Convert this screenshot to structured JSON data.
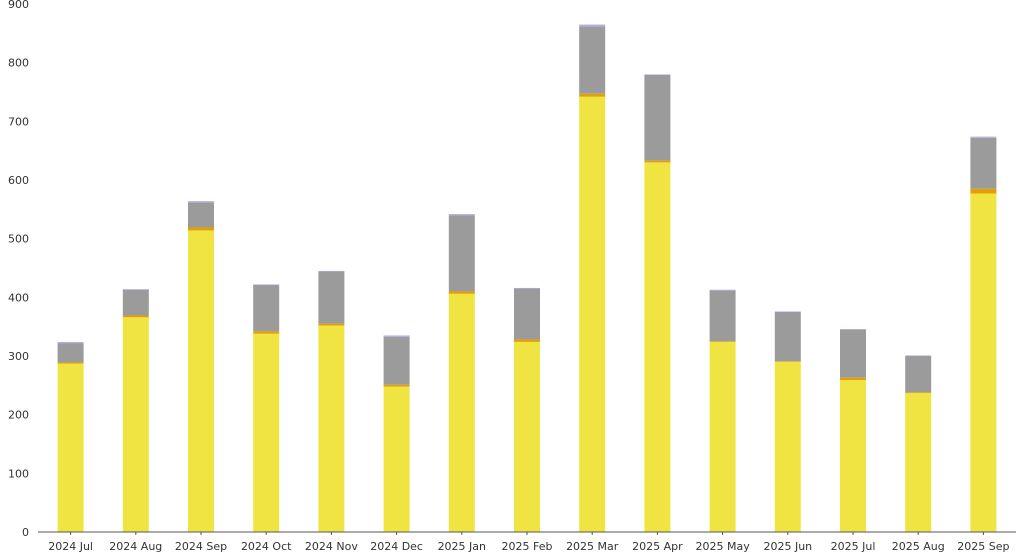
{
  "chart_data": {
    "type": "bar",
    "stacked": true,
    "categories": [
      "2024 Jul",
      "2024 Aug",
      "2024 Sep",
      "2024 Oct",
      "2024 Nov",
      "2024 Dec",
      "2025 Jan",
      "2025 Feb",
      "2025 Mar",
      "2025 Apr",
      "2025 May",
      "2025 Jun",
      "2025 Jul",
      "2025 Aug",
      "2025 Sep"
    ],
    "series": [
      {
        "color": "#f0e442",
        "values": [
          287,
          366,
          514,
          338,
          352,
          248,
          406,
          324,
          742,
          630,
          324,
          290,
          259,
          237,
          577
        ]
      },
      {
        "color": "#e69f00",
        "values": [
          2,
          3,
          5,
          4,
          3,
          3,
          4,
          4,
          5,
          3,
          1,
          1,
          4,
          1,
          8
        ]
      },
      {
        "color": "#9b9b9b",
        "values": [
          33,
          44,
          43,
          79,
          89,
          82,
          130,
          87,
          115,
          146,
          87,
          84,
          82,
          62,
          87
        ]
      },
      {
        "color": "#b0b0e8",
        "values": [
          2,
          1,
          2,
          1,
          1,
          2,
          2,
          1,
          3,
          1,
          1,
          1,
          1,
          1,
          2
        ]
      }
    ],
    "yticks": [
      0,
      100,
      200,
      300,
      400,
      500,
      600,
      700,
      800,
      900
    ],
    "ylim": [
      0,
      900
    ],
    "grid": false,
    "legend": "none"
  }
}
